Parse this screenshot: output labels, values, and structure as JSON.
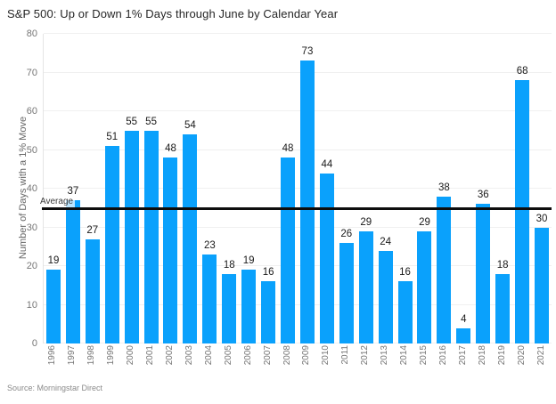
{
  "title": "S&P 500: Up or Down 1% Days through June by Calendar Year",
  "source": "Source: Morningstar Direct",
  "colors": {
    "bar": "#0aa1fc",
    "average_line": "#0d0d0d",
    "grid": "#f0f0f0",
    "axis": "#e4e4e4"
  },
  "chart_data": {
    "type": "bar",
    "title": "S&P 500: Up or Down 1% Days through June by Calendar Year",
    "xlabel": "",
    "ylabel": "Number of Days with a 1% Move",
    "ylim": [
      0,
      80
    ],
    "yticks": [
      0,
      10,
      20,
      30,
      40,
      50,
      60,
      70,
      80
    ],
    "grid": true,
    "legend_position": "none",
    "categories": [
      "1996",
      "1997",
      "1998",
      "1999",
      "2000",
      "2001",
      "2002",
      "2003",
      "2004",
      "2005",
      "2006",
      "2007",
      "2008",
      "2009",
      "2010",
      "2011",
      "2012",
      "2013",
      "2014",
      "2015",
      "2016",
      "2017",
      "2018",
      "2019",
      "2020",
      "2021"
    ],
    "values": [
      19,
      37,
      27,
      51,
      55,
      55,
      48,
      54,
      23,
      18,
      19,
      16,
      48,
      73,
      44,
      26,
      29,
      24,
      16,
      29,
      38,
      4,
      36,
      18,
      68,
      30
    ],
    "average_line": {
      "label": "Average",
      "value": 34.8
    }
  }
}
